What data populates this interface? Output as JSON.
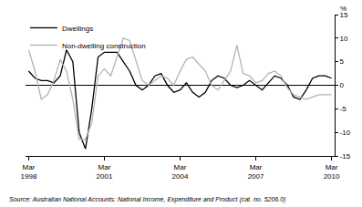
{
  "chart_data": {
    "type": "line",
    "y_label": "%",
    "source": "Source: Australian National Accounts: National Income, Expenditure and Product (cat. no. 5206.0)",
    "categories": [
      "Mar 1998",
      null,
      null,
      null,
      null,
      null,
      null,
      null,
      null,
      null,
      null,
      null,
      "Mar 2001",
      null,
      null,
      null,
      null,
      null,
      null,
      null,
      null,
      null,
      null,
      null,
      "Mar 2004",
      null,
      null,
      null,
      null,
      null,
      null,
      null,
      null,
      null,
      null,
      null,
      "Mar 2007",
      null,
      null,
      null,
      null,
      null,
      null,
      null,
      null,
      null,
      null,
      null,
      "Mar 2010"
    ],
    "series": [
      {
        "name": "Dwellings",
        "color": "#000000",
        "values": [
          3,
          1.5,
          1,
          1,
          0.5,
          2,
          7.5,
          5,
          -10,
          -13.5,
          -5,
          6,
          7,
          7,
          7,
          5,
          3,
          0,
          -1,
          0,
          2,
          2.5,
          0,
          -1.5,
          -1,
          0.5,
          -1.5,
          -2.5,
          -1.5,
          1,
          2,
          1.5,
          0,
          -0.5,
          0,
          1,
          0,
          -1,
          0.5,
          2,
          1.5,
          0,
          -2.5,
          -3,
          -1,
          1.5,
          2,
          2,
          1.5
        ]
      },
      {
        "name": "Non-dwelling construction",
        "color": "#b3b3b3",
        "values": [
          7.5,
          3,
          -3,
          -2,
          1,
          5.5,
          3,
          -3,
          -11.5,
          -11.5,
          -8,
          2,
          3.5,
          2,
          6,
          10,
          9.5,
          5,
          1,
          0,
          1,
          2,
          1.5,
          0,
          3,
          5.5,
          6,
          4.5,
          3,
          0,
          -1,
          1,
          3,
          8.5,
          2.5,
          2,
          0.5,
          1,
          2.5,
          3,
          2,
          -0.5,
          -2,
          -2.5,
          -3,
          -2.5,
          -2,
          -2,
          -2
        ]
      }
    ],
    "ylim": [
      -15,
      15
    ],
    "yticks": [
      -15,
      -10,
      -5,
      0,
      5,
      10,
      15
    ],
    "grid": false,
    "legend": "top-left"
  }
}
